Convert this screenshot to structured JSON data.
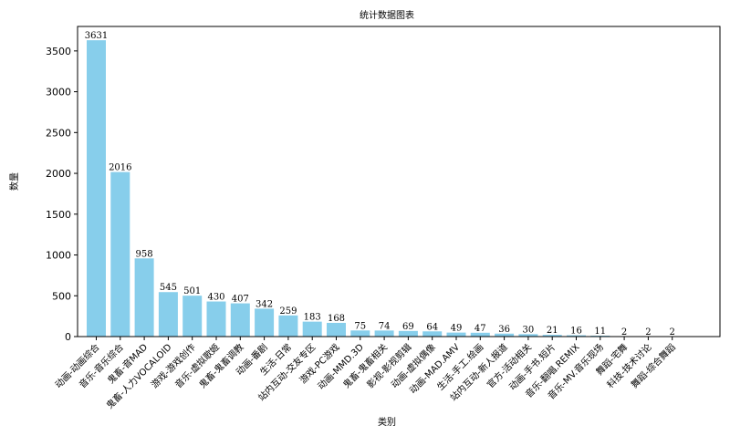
{
  "chart_data": {
    "type": "bar",
    "title": "统计数据图表",
    "xlabel": "类别",
    "ylabel": "数量",
    "ylim": [
      0,
      3800
    ],
    "yticks": [
      0,
      500,
      1000,
      1500,
      2000,
      2500,
      3000,
      3500
    ],
    "bar_color": "#87ceeb",
    "grid": false,
    "categories": [
      "动画-动画综合",
      "音乐-音乐综合",
      "鬼畜-音MAD",
      "鬼畜-人力VOCALOID",
      "游戏-游戏创作",
      "音乐-虚拟歌姬",
      "鬼畜-鬼畜调教",
      "动画-番剧",
      "生活-日常",
      "站内互动-交友专区",
      "游戏-PC游戏",
      "动画-MMD.3D",
      "鬼畜-鬼畜相关",
      "影视-影视剪辑",
      "动画-虚拟偶像",
      "动画-MAD.AMV",
      "生活-手工.绘画",
      "站内互动-新人报道",
      "官方-活动相关",
      "动画-手书.短片",
      "音乐-翻唱.REMIX",
      "音乐-MV.音乐现场",
      "舞蹈-宅舞",
      "科技-技术讨论",
      "舞蹈-综合舞蹈"
    ],
    "values": [
      3631,
      2016,
      958,
      545,
      501,
      430,
      407,
      342,
      259,
      183,
      168,
      75,
      74,
      69,
      64,
      49,
      47,
      36,
      30,
      21,
      16,
      11,
      2,
      2,
      2
    ]
  }
}
